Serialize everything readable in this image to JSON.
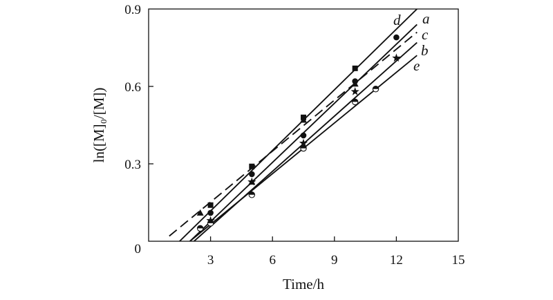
{
  "chart_data": {
    "type": "scatter",
    "title": "",
    "xlabel": "Time/h",
    "ylabel": "ln([M]₀/[M])",
    "xlim": [
      0,
      15
    ],
    "ylim": [
      0,
      0.9
    ],
    "xticks": [
      0,
      3,
      6,
      9,
      12,
      15
    ],
    "yticks": [
      0,
      0.3,
      0.6,
      0.9
    ],
    "xtick_labels": [
      "3",
      "6",
      "9",
      "12",
      "15"
    ],
    "ytick_labels": [
      "0",
      "0.3",
      "0.6",
      "0.9"
    ],
    "grid": false,
    "legend": "none",
    "series": [
      {
        "name": "d",
        "marker": "square",
        "line_style": "solid",
        "fit": [
          [
            1.5,
            0.0
          ],
          [
            13.0,
            0.9
          ]
        ],
        "points": [
          [
            3.0,
            0.14
          ],
          [
            5.0,
            0.29
          ],
          [
            7.5,
            0.48
          ],
          [
            10.0,
            0.67
          ]
        ]
      },
      {
        "name": "a",
        "marker": "circle-filled",
        "line_style": "solid",
        "fit": [
          [
            2.0,
            0.0
          ],
          [
            13.0,
            0.84
          ]
        ],
        "points": [
          [
            3.0,
            0.11
          ],
          [
            5.0,
            0.26
          ],
          [
            7.5,
            0.41
          ],
          [
            10.0,
            0.62
          ],
          [
            12.0,
            0.79
          ]
        ]
      },
      {
        "name": "c",
        "marker": "triangle",
        "line_style": "dashed",
        "fit": [
          [
            1.0,
            0.02
          ],
          [
            13.0,
            0.81
          ]
        ],
        "points": [
          [
            2.5,
            0.11
          ],
          [
            5.0,
            0.23
          ],
          [
            7.5,
            0.47
          ],
          [
            10.0,
            0.61
          ]
        ]
      },
      {
        "name": "b",
        "marker": "star",
        "line_style": "solid",
        "fit": [
          [
            2.2,
            0.0
          ],
          [
            13.0,
            0.77
          ]
        ],
        "points": [
          [
            3.0,
            0.08
          ],
          [
            5.0,
            0.23
          ],
          [
            7.5,
            0.38
          ],
          [
            10.0,
            0.58
          ],
          [
            12.0,
            0.71
          ]
        ]
      },
      {
        "name": "e",
        "marker": "circle-half",
        "line_style": "solid",
        "fit": [
          [
            2.0,
            0.0
          ],
          [
            13.0,
            0.72
          ]
        ],
        "points": [
          [
            2.5,
            0.05
          ],
          [
            3.0,
            0.07
          ],
          [
            5.0,
            0.18
          ],
          [
            7.5,
            0.36
          ],
          [
            10.0,
            0.54
          ],
          [
            11.0,
            0.59
          ]
        ]
      }
    ]
  }
}
